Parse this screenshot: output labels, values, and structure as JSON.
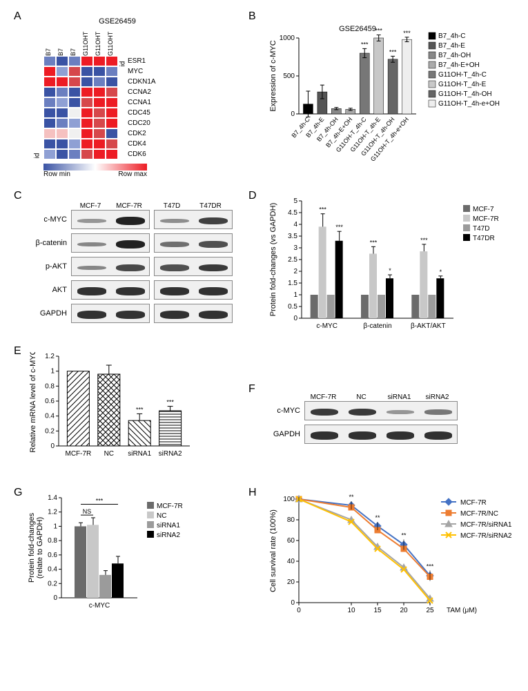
{
  "panelA": {
    "dataset": "GSE26459",
    "col_headers": [
      "B7",
      "B7",
      "B7",
      "G11OHT",
      "G11OHT",
      "G11OHT"
    ],
    "row_labels": [
      "ESR1",
      "MYC",
      "CDKN1A",
      "CCNA2",
      "CCNA1",
      "CDC45",
      "CDC20",
      "CDK2",
      "CDK4",
      "CDK6"
    ],
    "id_label_left": "id",
    "id_label_right": "id",
    "scale_min": "Row min",
    "scale_max": "Row max",
    "colors": {
      "min": "#3a53a4",
      "mid": "#ffffff",
      "max": "#ed1c24"
    },
    "cells": [
      [
        "#6b7fc0",
        "#3a53a4",
        "#6b7fc0",
        "#ed1c24",
        "#ed1c24",
        "#ed1c24"
      ],
      [
        "#ed1c24",
        "#8fa0d4",
        "#d6474b",
        "#3a53a4",
        "#3a53a4",
        "#6b7fc0"
      ],
      [
        "#ed1c24",
        "#ed1c24",
        "#d6474b",
        "#3a53a4",
        "#6b7fc0",
        "#3a53a4"
      ],
      [
        "#3a53a4",
        "#6b7fc0",
        "#3a53a4",
        "#ed1c24",
        "#ed1c24",
        "#d6474b"
      ],
      [
        "#6b7fc0",
        "#8fa0d4",
        "#3a53a4",
        "#d6474b",
        "#ed1c24",
        "#ed1c24"
      ],
      [
        "#3a53a4",
        "#3a53a4",
        "#f0f0f0",
        "#ed1c24",
        "#d6474b",
        "#ed1c24"
      ],
      [
        "#3a53a4",
        "#6b7fc0",
        "#8fa0d4",
        "#ed1c24",
        "#d6474b",
        "#ed1c24"
      ],
      [
        "#f5c1c0",
        "#f5c1c0",
        "#f0f0f0",
        "#ed1c24",
        "#d6474b",
        "#3a53a4"
      ],
      [
        "#3a53a4",
        "#3a53a4",
        "#8fa0d4",
        "#ed1c24",
        "#ed1c24",
        "#d6474b"
      ],
      [
        "#8fa0d4",
        "#3a53a4",
        "#6b7fc0",
        "#d6474b",
        "#ed1c24",
        "#ed1c24"
      ]
    ]
  },
  "panelB": {
    "dataset": "GSE26459",
    "ylabel": "Expression of c-MYC",
    "ylim": [
      0,
      1000
    ],
    "ytick_step": 500,
    "categories": [
      "B7_4h-C",
      "B7_4h-E",
      "B7_4h-OH",
      "B7_4h-E+OH",
      "G11OH-T_4h-C",
      "G11OH-T_4h-E",
      "G11OH-T_4h-OH",
      "G11OH-T_4h-e+OH"
    ],
    "values": [
      130,
      290,
      70,
      60,
      800,
      1090,
      720,
      980
    ],
    "errors": [
      170,
      90,
      15,
      15,
      60,
      40,
      40,
      30
    ],
    "sig": [
      "",
      "",
      "",
      "",
      "***",
      "***",
      "***",
      "***"
    ],
    "bar_colors": [
      "#000000",
      "#555555",
      "#888888",
      "#aaaaaa",
      "#777777",
      "#c8c8c8",
      "#666666",
      "#eeeeee"
    ],
    "legend": [
      "B7_4h-C",
      "B7_4h-E",
      "B7_4h-OH",
      "B7_4h-E+OH",
      "G11OH-T_4h-C",
      "G11OH-T_4h-E",
      "G11OH-T_4h-OH",
      "G11OH-T_4h-e+OH"
    ]
  },
  "panelC": {
    "col_headers_left": [
      "MCF-7",
      "MCF-7R"
    ],
    "col_headers_right": [
      "T47D",
      "T47DR"
    ],
    "rows": [
      "c-MYC",
      "β-catenin",
      "p-AKT",
      "AKT",
      "GAPDH"
    ],
    "band_intensity": {
      "c-MYC": [
        0.25,
        1.0,
        0.3,
        0.8
      ],
      "β-catenin": [
        0.35,
        1.0,
        0.5,
        0.7
      ],
      "p-AKT": [
        0.35,
        0.75,
        0.7,
        0.85
      ],
      "AKT": [
        0.9,
        0.9,
        0.9,
        0.9
      ],
      "GAPDH": [
        0.9,
        0.9,
        0.9,
        0.9
      ]
    }
  },
  "panelD": {
    "ylabel": "Protein fold-changes (vs GAPDH)",
    "ylim": [
      0,
      5
    ],
    "ytick_step": 0.5,
    "groups": [
      "c-MYC",
      "β-catenin",
      "β-AKT/AKT"
    ],
    "series": [
      "MCF-7",
      "MCF-7R",
      "T47D",
      "T47DR"
    ],
    "series_colors": [
      "#6b6b6b",
      "#c8c8c8",
      "#9b9b9b",
      "#000000"
    ],
    "values": [
      [
        1,
        3.9,
        1,
        3.3
      ],
      [
        1,
        2.75,
        1,
        1.7
      ],
      [
        1,
        2.85,
        1,
        1.7
      ]
    ],
    "errors": [
      [
        0,
        0.55,
        0,
        0.4
      ],
      [
        0,
        0.3,
        0,
        0.15
      ],
      [
        0,
        0.3,
        0,
        0.1
      ]
    ],
    "sig": [
      [
        "",
        "***",
        "",
        "***"
      ],
      [
        "",
        "***",
        "",
        "*"
      ],
      [
        "",
        "***",
        "",
        "*"
      ]
    ]
  },
  "panelE": {
    "ylabel": "Relative mRNA level of c-MYC",
    "ylim": [
      0,
      1.2
    ],
    "ytick_step": 0.2,
    "categories": [
      "MCF-7R",
      "NC",
      "siRNA1",
      "siRNA2"
    ],
    "values": [
      1.0,
      0.96,
      0.34,
      0.47
    ],
    "errors": [
      0,
      0.12,
      0.09,
      0.06
    ],
    "sig": [
      "",
      "",
      "***",
      "***"
    ],
    "patterns": [
      "diag1",
      "cross",
      "diag2",
      "horiz"
    ]
  },
  "panelF": {
    "col_headers": [
      "MCF-7R",
      "NC",
      "siRNA1",
      "siRNA2"
    ],
    "rows": [
      "c-MYC",
      "GAPDH"
    ],
    "band_intensity": {
      "c-MYC": [
        0.85,
        0.85,
        0.25,
        0.45
      ],
      "GAPDH": [
        0.9,
        0.9,
        0.9,
        0.9
      ]
    }
  },
  "panelG": {
    "ylabel": "Protein fold-changes\n(relate to GAPDH)",
    "group_label": "c-MYC",
    "ylim": [
      0,
      1.4
    ],
    "ytick_step": 0.2,
    "series": [
      "MCF-7R",
      "NC",
      "siRNA1",
      "siRNA2"
    ],
    "series_colors": [
      "#6b6b6b",
      "#c8c8c8",
      "#9b9b9b",
      "#000000"
    ],
    "values": [
      1.0,
      1.02,
      0.32,
      0.48
    ],
    "errors": [
      0.05,
      0.1,
      0.06,
      0.1
    ],
    "ns_label": "NS",
    "sig_label": "***"
  },
  "panelH": {
    "ylabel": "Cell survival rate (100%)",
    "xlabel": "TAM (μM)",
    "x": [
      0,
      10,
      15,
      20,
      25
    ],
    "ylim": [
      0,
      100
    ],
    "ytick_step": 20,
    "series": [
      {
        "name": "MCF-7R",
        "color": "#4472c4",
        "marker": "diamond",
        "values": [
          100,
          94,
          74,
          56,
          26
        ]
      },
      {
        "name": "MCF-7R/NC",
        "color": "#ed7d31",
        "marker": "square",
        "values": [
          100,
          92,
          70,
          52,
          25
        ]
      },
      {
        "name": "MCF-7R/siRNA1",
        "color": "#a5a5a5",
        "marker": "triangle",
        "values": [
          100,
          80,
          54,
          34,
          4
        ]
      },
      {
        "name": "MCF-7R/siRNA2",
        "color": "#ffc000",
        "marker": "x",
        "values": [
          100,
          78,
          52,
          32,
          2
        ]
      }
    ],
    "errors": [
      2,
      4,
      4,
      5,
      5
    ],
    "sig": [
      "",
      "**",
      "**",
      "**",
      "***"
    ]
  }
}
